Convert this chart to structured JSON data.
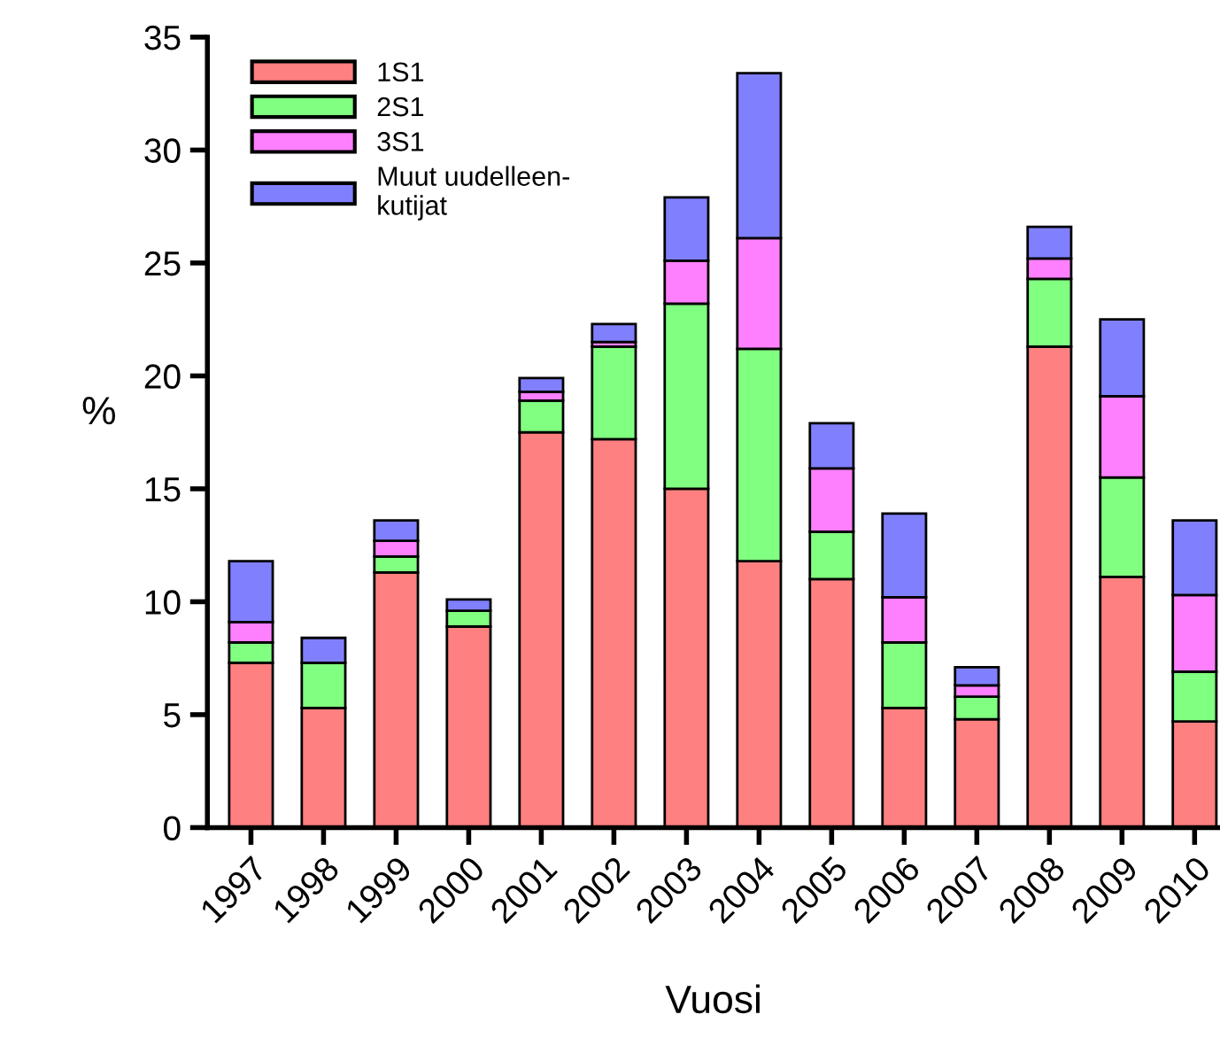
{
  "chart_data": {
    "type": "bar",
    "stacked": true,
    "xlabel": "Vuosi",
    "ylabel": "%",
    "categories": [
      "1997",
      "1998",
      "1999",
      "2000",
      "2001",
      "2002",
      "2003",
      "2004",
      "2005",
      "2006",
      "2007",
      "2008",
      "2009",
      "2010"
    ],
    "series": [
      {
        "name": "1S1",
        "color": "#ff8080",
        "values": [
          7.3,
          5.3,
          11.3,
          8.9,
          17.5,
          17.2,
          15.0,
          11.8,
          11.0,
          5.3,
          4.8,
          21.3,
          11.1,
          4.7
        ]
      },
      {
        "name": "2S1",
        "color": "#80ff80",
        "values": [
          0.9,
          2.0,
          0.7,
          0.7,
          1.4,
          4.1,
          8.2,
          9.4,
          2.1,
          2.9,
          1.0,
          3.0,
          4.4,
          2.2
        ]
      },
      {
        "name": "3S1",
        "color": "#ff80ff",
        "values": [
          0.9,
          null,
          0.7,
          null,
          0.4,
          0.2,
          1.9,
          4.9,
          2.8,
          2.0,
          0.5,
          0.9,
          3.6,
          3.4
        ]
      },
      {
        "name": "Muut uudelleen-\nkutijat",
        "color": "#8080ff",
        "values": [
          2.7,
          1.1,
          0.9,
          0.5,
          0.6,
          0.8,
          2.8,
          7.3,
          2.0,
          3.7,
          0.8,
          1.4,
          3.4,
          3.3
        ]
      }
    ],
    "ylim": [
      0,
      35
    ],
    "yticks": [
      0,
      5,
      10,
      15,
      20,
      25,
      30,
      35
    ],
    "grid": false,
    "legend": "top left"
  }
}
